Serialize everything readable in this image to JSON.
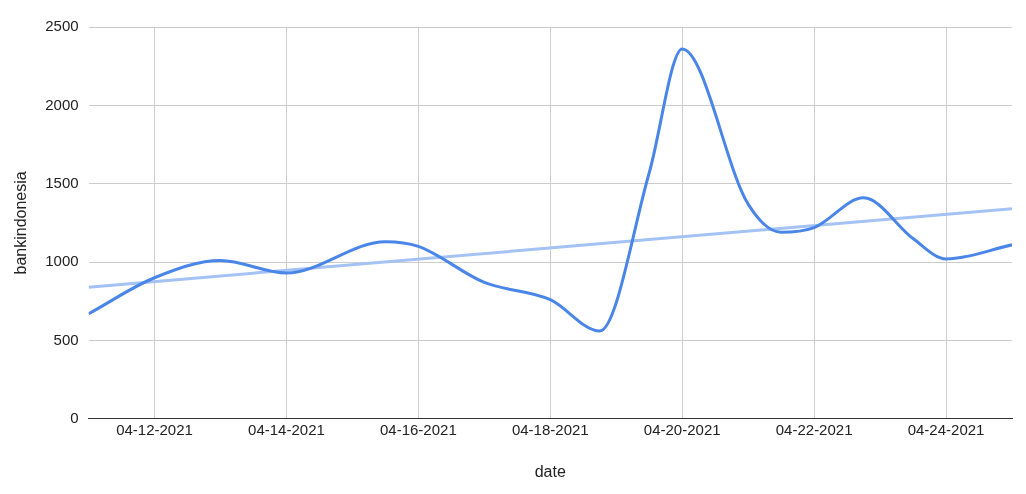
{
  "chart_data": {
    "type": "line",
    "xlabel": "date",
    "ylabel": "bankindonesia",
    "xlim": [
      "2021-04-11",
      "2021-04-25"
    ],
    "xticks": [
      {
        "value": "2021-04-12",
        "label": "04-12-2021"
      },
      {
        "value": "2021-04-14",
        "label": "04-14-2021"
      },
      {
        "value": "2021-04-16",
        "label": "04-16-2021"
      },
      {
        "value": "2021-04-18",
        "label": "04-18-2021"
      },
      {
        "value": "2021-04-20",
        "label": "04-20-2021"
      },
      {
        "value": "2021-04-22",
        "label": "04-22-2021"
      },
      {
        "value": "2021-04-24",
        "label": "04-24-2021"
      }
    ],
    "ylim": [
      0,
      2500
    ],
    "yticks": [
      0,
      500,
      1000,
      1500,
      2000,
      2500
    ],
    "grid": true,
    "legend": false,
    "marker": "none",
    "line_style": "solid",
    "series": [
      {
        "color": "#4a86e8",
        "x": [
          "2021-04-11",
          "2021-04-12",
          "2021-04-13",
          "2021-04-14",
          "2021-04-15T12:00",
          "2021-04-16",
          "2021-04-17",
          "2021-04-18",
          "2021-04-18T18:00",
          "2021-04-19T12:00",
          "2021-04-20",
          "2021-04-21",
          "2021-04-21T12:00",
          "2021-04-22",
          "2021-04-22T18:00",
          "2021-04-23T12:00",
          "2021-04-24",
          "2021-04-25"
        ],
        "values": [
          670,
          900,
          1010,
          930,
          1130,
          1100,
          870,
          760,
          560,
          1570,
          2360,
          1370,
          1190,
          1220,
          1410,
          1150,
          1020,
          1110
        ]
      },
      {
        "type": "line",
        "color": "#a4c2f4",
        "x": [
          "2021-04-11",
          "2021-04-25"
        ],
        "values": [
          840,
          1340
        ]
      }
    ]
  }
}
